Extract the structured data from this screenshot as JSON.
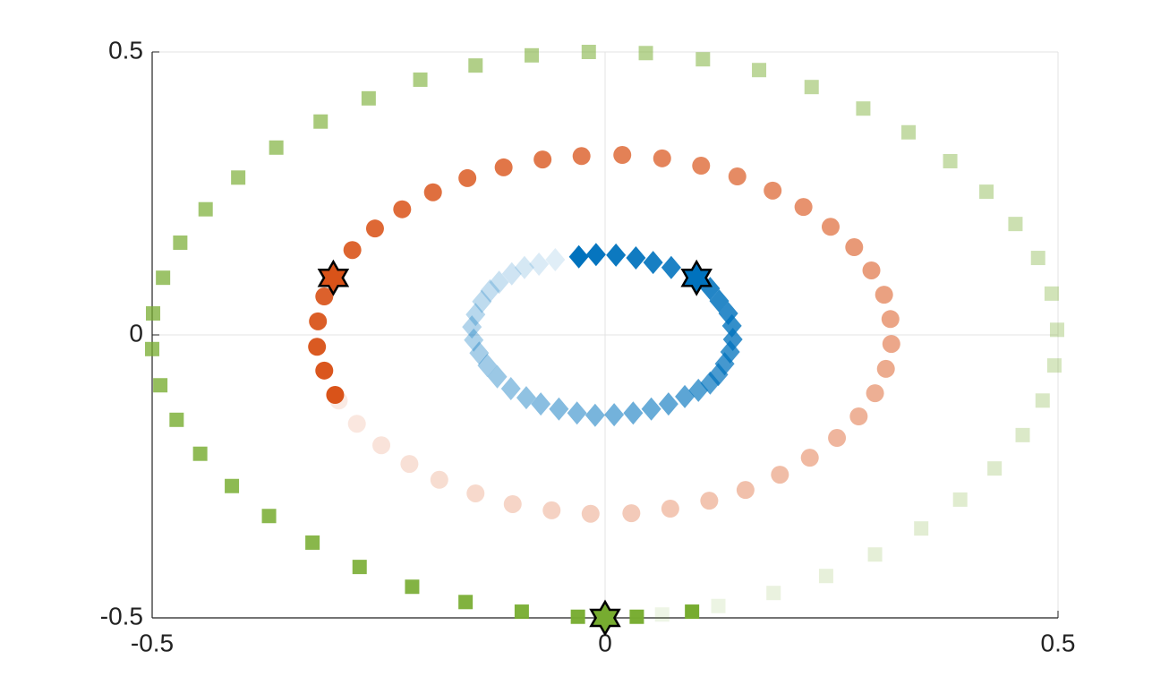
{
  "chart_data": {
    "type": "scatter",
    "xlim": [
      -0.5,
      0.5
    ],
    "ylim": [
      -0.5,
      0.5
    ],
    "xticks": [
      -0.5,
      0,
      0.5
    ],
    "yticks": [
      -0.5,
      0,
      0.5
    ],
    "grid": true,
    "series": [
      {
        "marker": "square",
        "color": "#77ac30",
        "x": [
          0.063,
          0.125,
          0.186,
          0.244,
          0.298,
          0.349,
          0.392,
          0.43,
          0.461,
          0.483,
          0.496,
          0.499,
          0.493,
          0.478,
          0.453,
          0.421,
          0.381,
          0.335,
          0.285,
          0.228,
          0.17,
          0.108,
          0.045,
          -0.018,
          -0.081,
          -0.143,
          -0.204,
          -0.261,
          -0.314,
          -0.363,
          -0.405,
          -0.441,
          -0.469,
          -0.488,
          -0.499,
          -0.5,
          -0.491,
          -0.473,
          -0.447,
          -0.412,
          -0.371,
          -0.323,
          -0.271,
          -0.213,
          -0.154,
          -0.092,
          -0.03,
          0.035,
          0.096
        ],
        "y": [
          -0.494,
          -0.479,
          -0.456,
          -0.426,
          -0.388,
          -0.342,
          -0.291,
          -0.236,
          -0.177,
          -0.116,
          -0.054,
          0.009,
          0.073,
          0.136,
          0.196,
          0.253,
          0.307,
          0.358,
          0.4,
          0.438,
          0.468,
          0.487,
          0.498,
          0.5,
          0.494,
          0.476,
          0.451,
          0.418,
          0.377,
          0.331,
          0.278,
          0.222,
          0.163,
          0.101,
          0.038,
          -0.025,
          -0.089,
          -0.15,
          -0.21,
          -0.267,
          -0.32,
          -0.367,
          -0.41,
          -0.445,
          -0.472,
          -0.489,
          -0.498,
          -0.498,
          -0.489
        ],
        "star_x": 0,
        "star_y": -0.5
      },
      {
        "marker": "circle",
        "color": "#d95319",
        "x": [
          -0.294,
          -0.274,
          -0.247,
          -0.216,
          -0.183,
          -0.143,
          -0.102,
          -0.059,
          -0.016,
          0.029,
          0.072,
          0.115,
          0.155,
          0.193,
          0.226,
          0.256,
          0.28,
          0.298,
          0.31,
          0.316,
          0.315,
          0.308,
          0.294,
          0.275,
          0.249,
          0.219,
          0.185,
          0.146,
          0.106,
          0.063,
          0.019,
          -0.026,
          -0.069,
          -0.112,
          -0.152,
          -0.19,
          -0.224,
          -0.254,
          -0.279,
          -0.31,
          -0.317,
          -0.318,
          -0.31,
          -0.298
        ],
        "y": [
          -0.116,
          -0.157,
          -0.195,
          -0.228,
          -0.256,
          -0.28,
          -0.299,
          -0.31,
          -0.316,
          -0.315,
          -0.307,
          -0.293,
          -0.274,
          -0.247,
          -0.217,
          -0.182,
          -0.144,
          -0.103,
          -0.06,
          -0.016,
          0.028,
          0.071,
          0.114,
          0.155,
          0.191,
          0.226,
          0.255,
          0.28,
          0.299,
          0.312,
          0.318,
          0.316,
          0.31,
          0.296,
          0.277,
          0.252,
          0.222,
          0.188,
          0.15,
          0.068,
          0.024,
          -0.021,
          -0.063,
          -0.106
        ],
        "star_x": -0.3,
        "star_y": 0.101
      },
      {
        "marker": "diamond",
        "color": "#0072bd",
        "x": [
          -0.055,
          -0.073,
          -0.089,
          -0.103,
          -0.117,
          -0.127,
          -0.136,
          -0.143,
          -0.147,
          -0.145,
          -0.139,
          -0.13,
          -0.119,
          -0.104,
          -0.087,
          -0.071,
          -0.051,
          -0.031,
          -0.011,
          0.01,
          0.031,
          0.051,
          0.07,
          0.088,
          0.103,
          0.116,
          0.125,
          0.132,
          0.138,
          0.141,
          0.14,
          0.136,
          0.126,
          0.116,
          0.073,
          0.053,
          0.034,
          0.012,
          -0.01,
          -0.029
        ],
        "y": [
          0.133,
          0.125,
          0.119,
          0.108,
          0.093,
          0.078,
          0.059,
          0.036,
          0.014,
          -0.009,
          -0.032,
          -0.054,
          -0.074,
          -0.095,
          -0.111,
          -0.122,
          -0.131,
          -0.138,
          -0.142,
          -0.141,
          -0.138,
          -0.131,
          -0.122,
          -0.109,
          -0.098,
          -0.085,
          -0.07,
          -0.051,
          -0.03,
          -0.008,
          0.016,
          0.038,
          0.06,
          0.082,
          0.119,
          0.128,
          0.136,
          0.141,
          0.142,
          0.138
        ],
        "star_x": 0.101,
        "star_y": 0.101
      }
    ]
  }
}
